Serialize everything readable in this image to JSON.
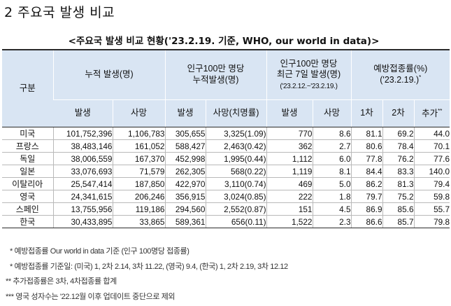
{
  "heading": "2  주요국 발생 비교",
  "caption": "<주요국 발생 비교 현황('23.2.19. 기준, WHO, our world in data)>",
  "table": {
    "gubun": "구분",
    "groups": {
      "cumulative": "누적 발생(명)",
      "per_million_cum_1": "인구100만 명당",
      "per_million_cum_2": "누적발생(명)",
      "recent_1": "인구100만 명당",
      "recent_2": "최근 7일 발생(명)",
      "recent_3": "('23.2.12.~'23.2.19.)",
      "vacc_1": "예방접종률(%)",
      "vacc_2": "('23.2.19.)",
      "vacc_mark": "*"
    },
    "subheaders": {
      "cum_cases": "발생",
      "cum_deaths": "사망",
      "pm_cases": "발생",
      "pm_deaths": "사망(치명률)",
      "rc_cases": "발생",
      "rc_deaths": "사망",
      "dose1": "1차",
      "dose2": "2차",
      "booster": "추가",
      "booster_mark": "**"
    },
    "rows": [
      {
        "country": "미국",
        "cases": "101,752,396",
        "deaths": "1,106,783",
        "pm_cases": "305,655",
        "pm_deaths": "3,325(1.09)",
        "rc_cases": "770",
        "rc_deaths": "8.6",
        "d1": "81.1",
        "d2": "69.2",
        "boost": "44.0"
      },
      {
        "country": "프랑스",
        "cases": "38,483,146",
        "deaths": "161,052",
        "pm_cases": "588,427",
        "pm_deaths": "2,463(0.42)",
        "rc_cases": "362",
        "rc_deaths": "2.7",
        "d1": "80.6",
        "d2": "78.4",
        "boost": "70.1"
      },
      {
        "country": "독일",
        "cases": "38,006,559",
        "deaths": "167,370",
        "pm_cases": "452,998",
        "pm_deaths": "1,995(0.44)",
        "rc_cases": "1,112",
        "rc_deaths": "6.0",
        "d1": "77.8",
        "d2": "76.2",
        "boost": "77.6"
      },
      {
        "country": "일본",
        "cases": "33,076,693",
        "deaths": "71,579",
        "pm_cases": "262,305",
        "pm_deaths": "568(0.22)",
        "rc_cases": "1,119",
        "rc_deaths": "8.1",
        "d1": "84.4",
        "d2": "83.3",
        "boost": "140.0"
      },
      {
        "country": "이탈리아",
        "cases": "25,547,414",
        "deaths": "187,850",
        "pm_cases": "422,970",
        "pm_deaths": "3,110(0.74)",
        "rc_cases": "469",
        "rc_deaths": "5.0",
        "d1": "86.2",
        "d2": "81.3",
        "boost": "79.4"
      },
      {
        "country": "영국",
        "cases": "24,341,615",
        "deaths": "206,246",
        "pm_cases": "356,915",
        "pm_deaths": "3,024(0.85)",
        "rc_cases": "222",
        "rc_deaths": "1.8",
        "d1": "79.7",
        "d2": "75.2",
        "boost": "59.8"
      },
      {
        "country": "스페인",
        "cases": "13,755,956",
        "deaths": "119,186",
        "pm_cases": "294,560",
        "pm_deaths": "2,552(0.87)",
        "rc_cases": "151",
        "rc_deaths": "4.5",
        "d1": "86.9",
        "d2": "85.6",
        "boost": "55.7"
      },
      {
        "country": "한국",
        "cases": "30,433,895",
        "deaths": "33,865",
        "pm_cases": "589,361",
        "pm_deaths": "656(0.11)",
        "rc_cases": "1,522",
        "rc_deaths": "2.3",
        "d1": "86.6",
        "d2": "85.7",
        "boost": "79.8"
      }
    ]
  },
  "notes": [
    "* 예방접종률 Our world in data 기준 (인구 100명당 접종률)",
    "* 예방접종률 기준일: (미국) 1, 2차 2.14, 3차 11.22, (영국) 9.4, (한국) 1, 2차 2.19, 3차 12.12",
    "** 추가접종률은 3차, 4차접종률 합계",
    "*** 영국 성자수는 '22.12월 이후 업데이트 중단으로 제외"
  ]
}
